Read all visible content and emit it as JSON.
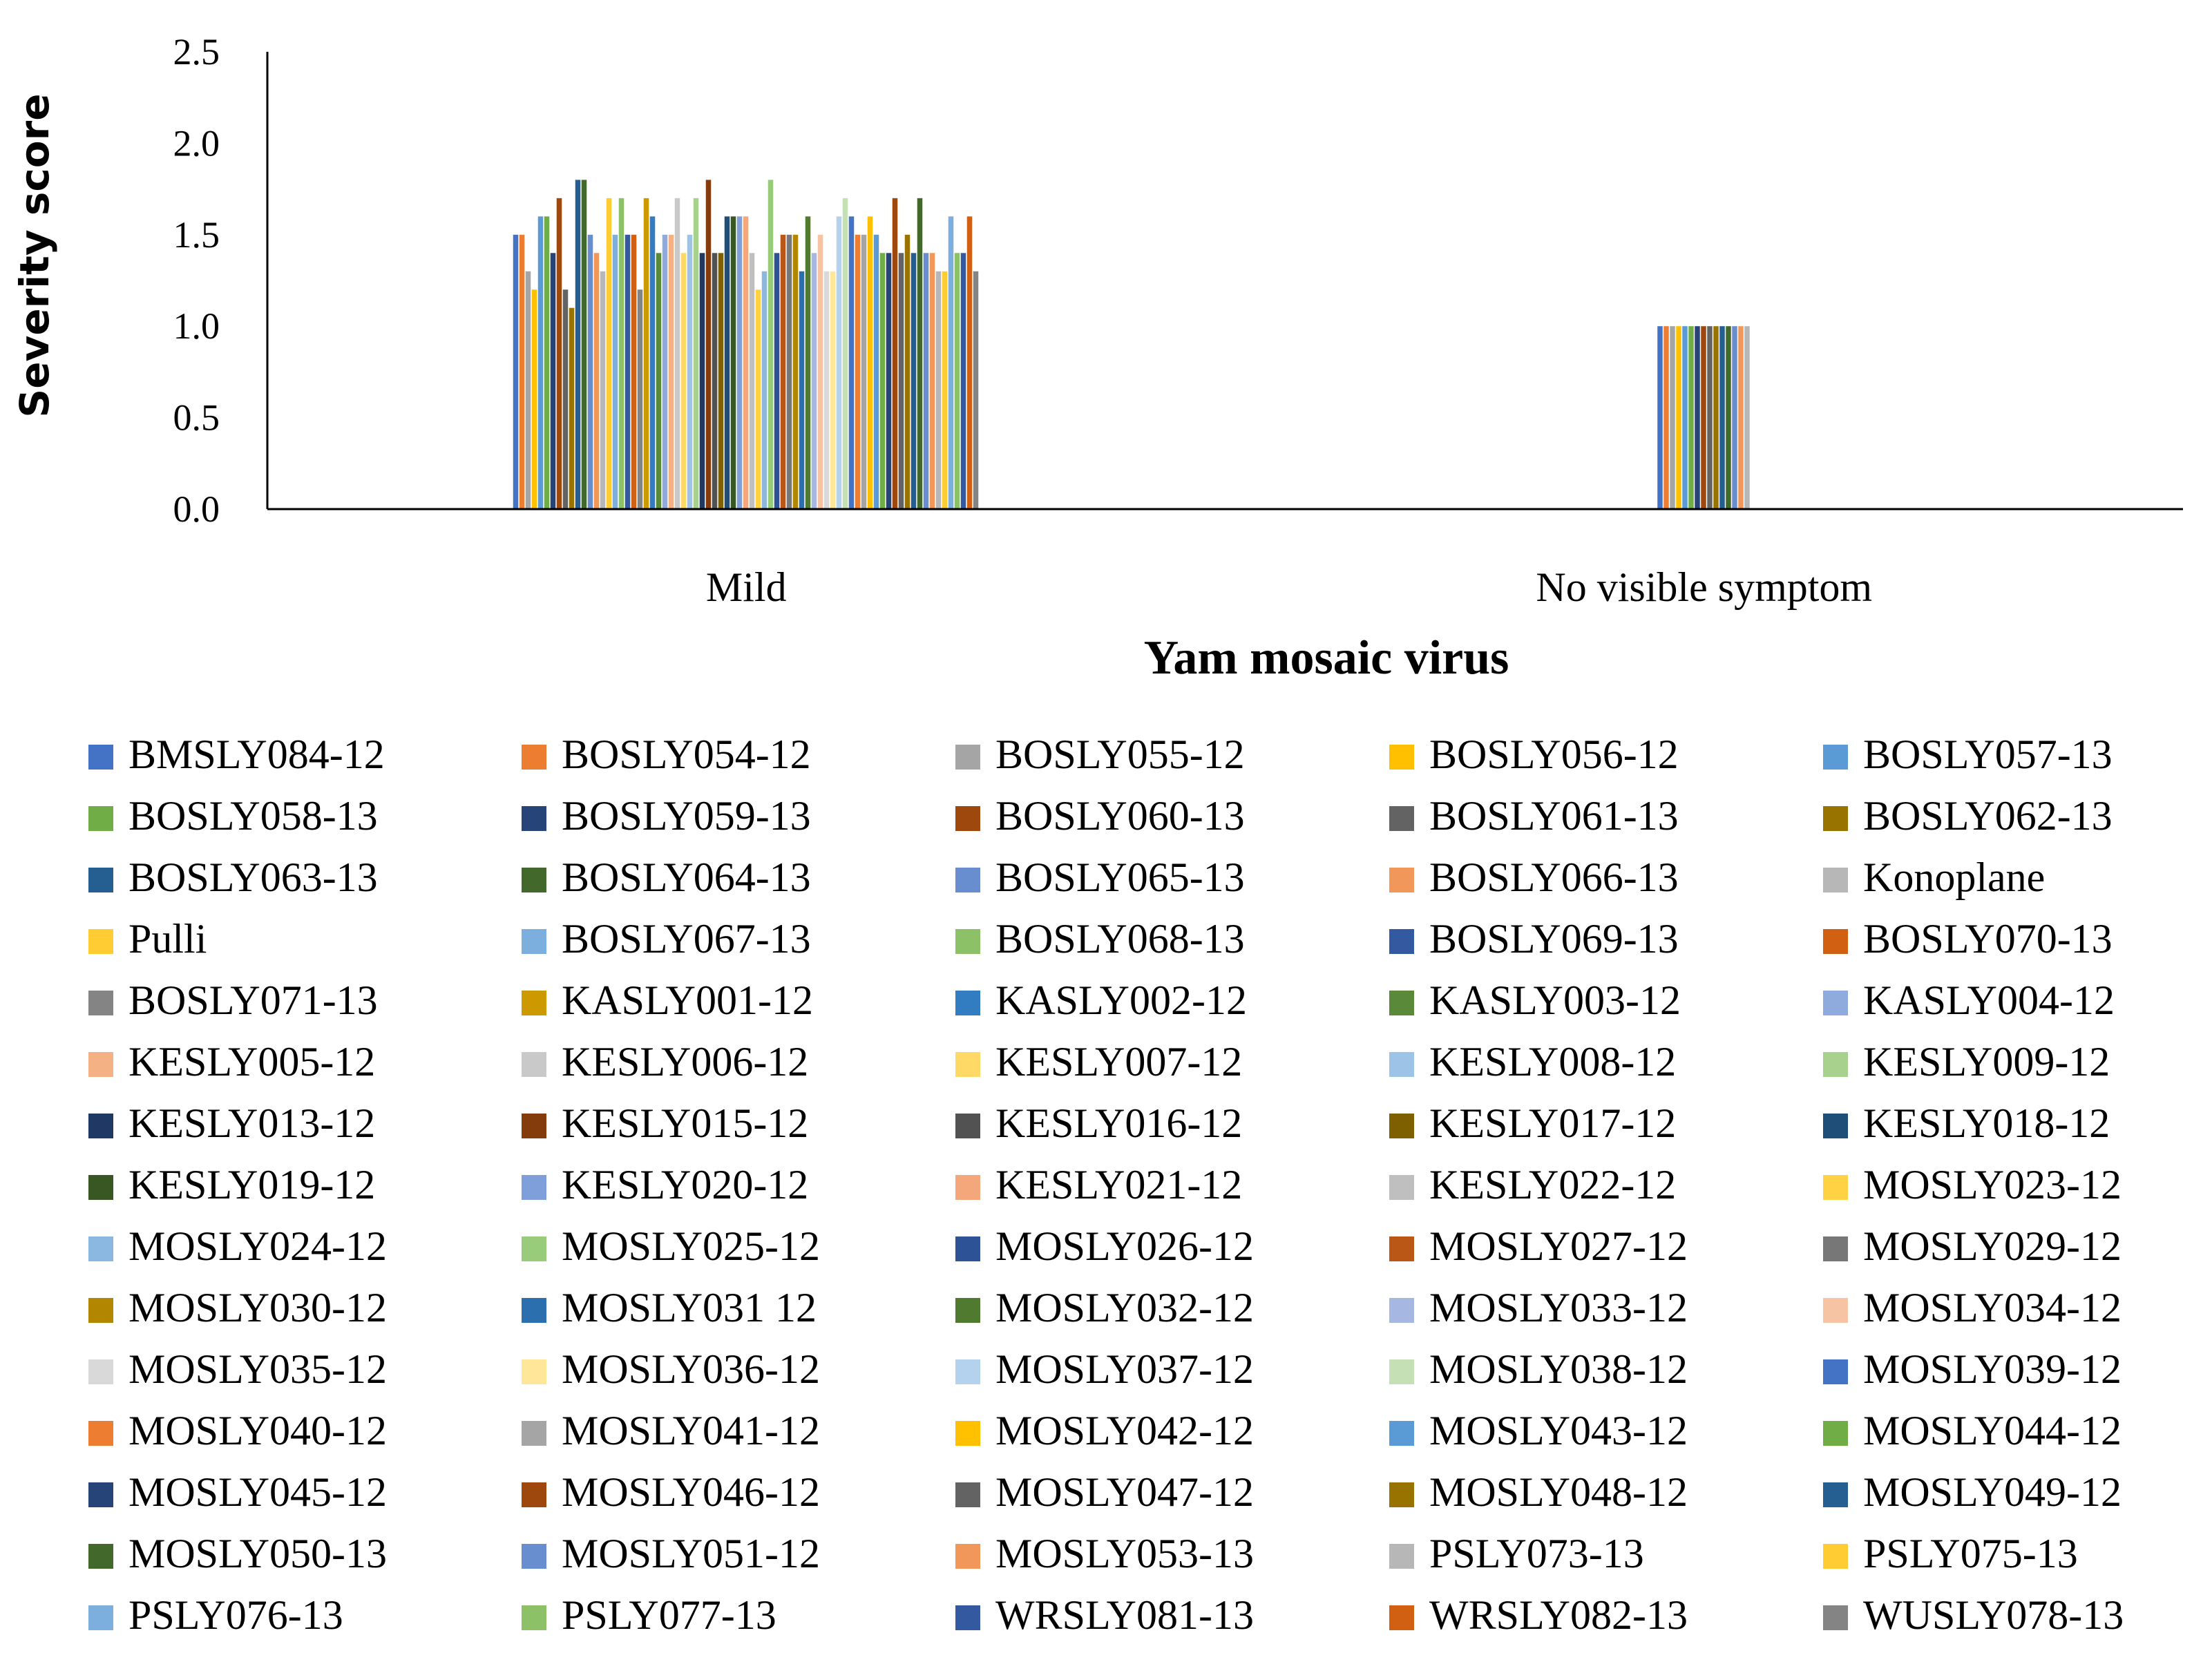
{
  "chart_data": {
    "type": "bar",
    "title": "",
    "xlabel": "Yam mosaic virus",
    "ylabel": "Severity score",
    "ylim": [
      0,
      2.5
    ],
    "yticks": [
      "0.0",
      "0.5",
      "1.0",
      "1.5",
      "2.0",
      "2.5"
    ],
    "categories": [
      "Mild",
      "No visible symptom"
    ],
    "grid": false,
    "legend_position": "bottom",
    "series": [
      {
        "name": "BMSLY084-12",
        "color": "#4472C4",
        "values": [
          1.5,
          1.0
        ]
      },
      {
        "name": "BOSLY054-12",
        "color": "#ED7D31",
        "values": [
          1.5,
          1.0
        ]
      },
      {
        "name": "BOSLY055-12",
        "color": "#A5A5A5",
        "values": [
          1.3,
          1.0
        ]
      },
      {
        "name": "BOSLY056-12",
        "color": "#FFC000",
        "values": [
          1.2,
          1.0
        ]
      },
      {
        "name": "BOSLY057-13",
        "color": "#5B9BD5",
        "values": [
          1.6,
          1.0
        ]
      },
      {
        "name": "BOSLY058-13",
        "color": "#70AD47",
        "values": [
          1.6,
          1.0
        ]
      },
      {
        "name": "BOSLY059-13",
        "color": "#264478",
        "values": [
          1.4,
          1.0
        ]
      },
      {
        "name": "BOSLY060-13",
        "color": "#9E480E",
        "values": [
          1.7,
          1.0
        ]
      },
      {
        "name": "BOSLY061-13",
        "color": "#636363",
        "values": [
          1.2,
          1.0
        ]
      },
      {
        "name": "BOSLY062-13",
        "color": "#997300",
        "values": [
          1.1,
          1.0
        ]
      },
      {
        "name": "BOSLY063-13",
        "color": "#255E91",
        "values": [
          1.8,
          1.0
        ]
      },
      {
        "name": "BOSLY064-13",
        "color": "#43682B",
        "values": [
          1.8,
          1.0
        ]
      },
      {
        "name": "BOSLY065-13",
        "color": "#698ED0",
        "values": [
          1.5,
          1.0
        ]
      },
      {
        "name": "BOSLY066-13",
        "color": "#F1975A",
        "values": [
          1.4,
          1.0
        ]
      },
      {
        "name": "Konoplane",
        "color": "#B7B7B7",
        "values": [
          1.3,
          1.0
        ]
      },
      {
        "name": "Pulli",
        "color": "#FFCD33",
        "values": [
          1.7,
          null
        ]
      },
      {
        "name": "BOSLY067-13",
        "color": "#7CAFDD",
        "values": [
          1.5,
          null
        ]
      },
      {
        "name": "BOSLY068-13",
        "color": "#8CC168",
        "values": [
          1.7,
          null
        ]
      },
      {
        "name": "BOSLY069-13",
        "color": "#335AA1",
        "values": [
          1.5,
          null
        ]
      },
      {
        "name": "BOSLY070-13",
        "color": "#D26012",
        "values": [
          1.5,
          null
        ]
      },
      {
        "name": "BOSLY071-13",
        "color": "#848484",
        "values": [
          1.2,
          null
        ]
      },
      {
        "name": "KASLY001-12",
        "color": "#CC9A00",
        "values": [
          1.7,
          null
        ]
      },
      {
        "name": "KASLY002-12",
        "color": "#327DC2",
        "values": [
          1.6,
          null
        ]
      },
      {
        "name": "KASLY003-12",
        "color": "#5A8A39",
        "values": [
          1.4,
          null
        ]
      },
      {
        "name": "KASLY004-12",
        "color": "#8FAADC",
        "values": [
          1.5,
          null
        ]
      },
      {
        "name": "KESLY005-12",
        "color": "#F4B183",
        "values": [
          1.5,
          null
        ]
      },
      {
        "name": "KESLY006-12",
        "color": "#C9C9C9",
        "values": [
          1.7,
          null
        ]
      },
      {
        "name": "KESLY007-12",
        "color": "#FFD966",
        "values": [
          1.4,
          null
        ]
      },
      {
        "name": "KESLY008-12",
        "color": "#9DC3E6",
        "values": [
          1.5,
          null
        ]
      },
      {
        "name": "KESLY009-12",
        "color": "#A9D18E",
        "values": [
          1.7,
          null
        ]
      },
      {
        "name": "KESLY013-12",
        "color": "#203864",
        "values": [
          1.4,
          null
        ]
      },
      {
        "name": "KESLY015-12",
        "color": "#843C0C",
        "values": [
          1.8,
          null
        ]
      },
      {
        "name": "KESLY016-12",
        "color": "#525252",
        "values": [
          1.4,
          null
        ]
      },
      {
        "name": "KESLY017-12",
        "color": "#7F6000",
        "values": [
          1.4,
          null
        ]
      },
      {
        "name": "KESLY018-12",
        "color": "#1F4E79",
        "values": [
          1.6,
          null
        ]
      },
      {
        "name": "KESLY019-12",
        "color": "#385723",
        "values": [
          1.6,
          null
        ]
      },
      {
        "name": "KESLY020-12",
        "color": "#7F9FDA",
        "values": [
          1.6,
          null
        ]
      },
      {
        "name": "KESLY021-12",
        "color": "#F4A77A",
        "values": [
          1.6,
          null
        ]
      },
      {
        "name": "KESLY022-12",
        "color": "#BFBFBF",
        "values": [
          1.4,
          null
        ]
      },
      {
        "name": "MOSLY023-12",
        "color": "#FFD243",
        "values": [
          1.2,
          null
        ]
      },
      {
        "name": "MOSLY024-12",
        "color": "#8AB8E0",
        "values": [
          1.3,
          null
        ]
      },
      {
        "name": "MOSLY025-12",
        "color": "#98CB7A",
        "values": [
          1.8,
          null
        ]
      },
      {
        "name": "MOSLY026-12",
        "color": "#2E5296",
        "values": [
          1.4,
          null
        ]
      },
      {
        "name": "MOSLY027-12",
        "color": "#BA5616",
        "values": [
          1.5,
          null
        ]
      },
      {
        "name": "MOSLY029-12",
        "color": "#777777",
        "values": [
          1.5,
          null
        ]
      },
      {
        "name": "MOSLY030-12",
        "color": "#B38600",
        "values": [
          1.5,
          null
        ]
      },
      {
        "name": "MOSLY031 12",
        "color": "#2B6FAE",
        "values": [
          1.3,
          null
        ]
      },
      {
        "name": "MOSLY032-12",
        "color": "#4F7A30",
        "values": [
          1.6,
          null
        ]
      },
      {
        "name": "MOSLY033-12",
        "color": "#A6B7E2",
        "values": [
          1.4,
          null
        ]
      },
      {
        "name": "MOSLY034-12",
        "color": "#F7C4A3",
        "values": [
          1.5,
          null
        ]
      },
      {
        "name": "MOSLY035-12",
        "color": "#D9D9D9",
        "values": [
          1.3,
          null
        ]
      },
      {
        "name": "MOSLY036-12",
        "color": "#FFE699",
        "values": [
          1.3,
          null
        ]
      },
      {
        "name": "MOSLY037-12",
        "color": "#B4D2EE",
        "values": [
          1.6,
          null
        ]
      },
      {
        "name": "MOSLY038-12",
        "color": "#C5E0B4",
        "values": [
          1.7,
          null
        ]
      },
      {
        "name": "MOSLY039-12",
        "color": "#4472C4",
        "values": [
          1.6,
          null
        ]
      },
      {
        "name": "MOSLY040-12",
        "color": "#ED7D31",
        "values": [
          1.5,
          null
        ]
      },
      {
        "name": "MOSLY041-12",
        "color": "#A5A5A5",
        "values": [
          1.5,
          null
        ]
      },
      {
        "name": "MOSLY042-12",
        "color": "#FFC000",
        "values": [
          1.6,
          null
        ]
      },
      {
        "name": "MOSLY043-12",
        "color": "#5B9BD5",
        "values": [
          1.5,
          null
        ]
      },
      {
        "name": "MOSLY044-12",
        "color": "#70AD47",
        "values": [
          1.4,
          null
        ]
      },
      {
        "name": "MOSLY045-12",
        "color": "#264478",
        "values": [
          1.4,
          null
        ]
      },
      {
        "name": "MOSLY046-12",
        "color": "#9E480E",
        "values": [
          1.7,
          null
        ]
      },
      {
        "name": "MOSLY047-12",
        "color": "#636363",
        "values": [
          1.4,
          null
        ]
      },
      {
        "name": "MOSLY048-12",
        "color": "#997300",
        "values": [
          1.5,
          null
        ]
      },
      {
        "name": "MOSLY049-12",
        "color": "#255E91",
        "values": [
          1.4,
          null
        ]
      },
      {
        "name": "MOSLY050-13",
        "color": "#43682B",
        "values": [
          1.7,
          null
        ]
      },
      {
        "name": "MOSLY051-12",
        "color": "#698ED0",
        "values": [
          1.4,
          null
        ]
      },
      {
        "name": "MOSLY053-13",
        "color": "#F1975A",
        "values": [
          1.4,
          null
        ]
      },
      {
        "name": "PSLY073-13",
        "color": "#B7B7B7",
        "values": [
          1.3,
          null
        ]
      },
      {
        "name": "PSLY075-13",
        "color": "#FFCD33",
        "values": [
          1.3,
          null
        ]
      },
      {
        "name": "PSLY076-13",
        "color": "#7CAFDD",
        "values": [
          1.6,
          null
        ]
      },
      {
        "name": "PSLY077-13",
        "color": "#8CC168",
        "values": [
          1.4,
          null
        ]
      },
      {
        "name": "WRSLY081-13",
        "color": "#335AA1",
        "values": [
          1.4,
          null
        ]
      },
      {
        "name": "WRSLY082-13",
        "color": "#D26012",
        "values": [
          1.6,
          null
        ]
      },
      {
        "name": "WUSLY078-13",
        "color": "#848484",
        "values": [
          1.3,
          null
        ]
      }
    ]
  }
}
